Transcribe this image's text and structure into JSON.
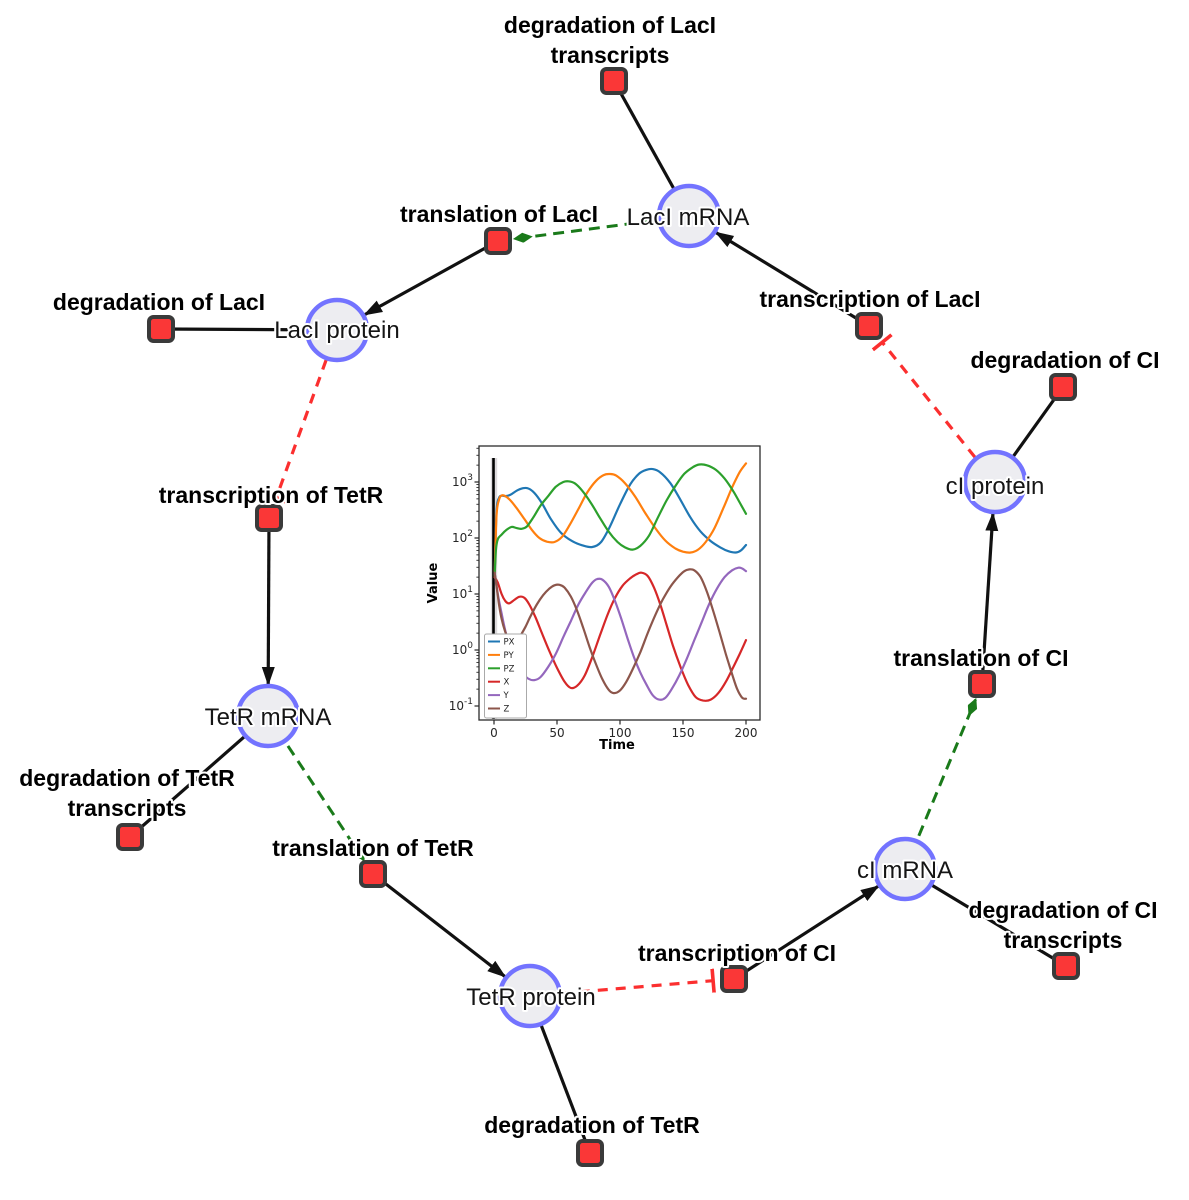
{
  "diagram": {
    "species": {
      "laci_mrna": {
        "label": "LacI mRNA"
      },
      "laci_protein": {
        "label": "LacI protein"
      },
      "tetr_mrna": {
        "label": "TetR mRNA"
      },
      "tetr_protein": {
        "label": "TetR protein"
      },
      "ci_mrna": {
        "label": "cI mRNA"
      },
      "ci_protein": {
        "label": "cI protein"
      }
    },
    "reactions": {
      "deg_laci_tx": {
        "lines": [
          "degradation of LacI",
          "transcripts"
        ]
      },
      "transl_laci": {
        "label": "translation of LacI"
      },
      "deg_laci": {
        "label": "degradation of LacI"
      },
      "txn_tetr": {
        "label": "transcription of TetR"
      },
      "deg_tetr_tx": {
        "lines": [
          "degradation of TetR",
          "transcripts"
        ]
      },
      "transl_tetr": {
        "label": "translation of TetR"
      },
      "deg_tetr": {
        "label": "degradation of TetR"
      },
      "txn_ci": {
        "label": "transcription of CI"
      },
      "deg_ci_tx": {
        "lines": [
          "degradation of CI",
          "transcripts"
        ]
      },
      "transl_ci": {
        "label": "translation of CI"
      },
      "deg_ci": {
        "label": "degradation of CI"
      },
      "txn_laci": {
        "label": "transcription of LacI"
      }
    },
    "edges": [
      {
        "source": "txn_laci",
        "target": "laci_mrna",
        "type": "production"
      },
      {
        "source": "txn_tetr",
        "target": "tetr_mrna",
        "type": "production"
      },
      {
        "source": "txn_ci",
        "target": "ci_mrna",
        "type": "production"
      },
      {
        "source": "transl_laci",
        "target": "laci_protein",
        "type": "production"
      },
      {
        "source": "transl_tetr",
        "target": "tetr_protein",
        "type": "production"
      },
      {
        "source": "transl_ci",
        "target": "ci_protein",
        "type": "production"
      },
      {
        "source": "laci_mrna",
        "target": "deg_laci_tx",
        "type": "degradation"
      },
      {
        "source": "laci_protein",
        "target": "deg_laci",
        "type": "degradation"
      },
      {
        "source": "tetr_mrna",
        "target": "deg_tetr_tx",
        "type": "degradation"
      },
      {
        "source": "tetr_protein",
        "target": "deg_tetr",
        "type": "degradation"
      },
      {
        "source": "ci_mrna",
        "target": "deg_ci_tx",
        "type": "degradation"
      },
      {
        "source": "ci_protein",
        "target": "deg_ci",
        "type": "degradation"
      },
      {
        "source": "laci_mrna",
        "target": "transl_laci",
        "type": "modifier"
      },
      {
        "source": "tetr_mrna",
        "target": "transl_tetr",
        "type": "modifier"
      },
      {
        "source": "ci_mrna",
        "target": "transl_ci",
        "type": "modifier"
      },
      {
        "source": "laci_protein",
        "target": "txn_tetr",
        "type": "inhibition"
      },
      {
        "source": "tetr_protein",
        "target": "txn_ci",
        "type": "inhibition"
      },
      {
        "source": "ci_protein",
        "target": "txn_laci",
        "type": "inhibition"
      }
    ],
    "colors": {
      "species_fill": "#ededf1",
      "species_stroke": "#7373ff",
      "reaction_fill": "#fa3737",
      "reaction_stroke": "#3a3a3a",
      "edge": "#111111",
      "activation": "#1a7a1a",
      "inhibition": "#fb2f2f"
    }
  },
  "chart_data": {
    "type": "line",
    "xlabel": "Time",
    "ylabel": "Value",
    "x_ticks": [
      0,
      50,
      100,
      150,
      200
    ],
    "xlim": [
      -12,
      212
    ],
    "y_scale": "log",
    "y_tick_exponents": [
      -1,
      0,
      1,
      2,
      3
    ],
    "ylim": [
      0.056,
      4500
    ],
    "legend_position": "lower left",
    "event_line_x": 0,
    "series": [
      {
        "name": "PX",
        "color": "#1f77b4",
        "points": [
          [
            0.5,
            20
          ],
          [
            2,
            300
          ],
          [
            4,
            520
          ],
          [
            6,
            570
          ],
          [
            9,
            560
          ],
          [
            13,
            590
          ],
          [
            18,
            700
          ],
          [
            23,
            775
          ],
          [
            27,
            770
          ],
          [
            32,
            640
          ],
          [
            38,
            420
          ],
          [
            45,
            220
          ],
          [
            53,
            125
          ],
          [
            62,
            88
          ],
          [
            70,
            74
          ],
          [
            78,
            69
          ],
          [
            85,
            85
          ],
          [
            92,
            160
          ],
          [
            100,
            400
          ],
          [
            108,
            900
          ],
          [
            115,
            1400
          ],
          [
            121,
            1650
          ],
          [
            126,
            1700
          ],
          [
            132,
            1480
          ],
          [
            140,
            950
          ],
          [
            148,
            480
          ],
          [
            156,
            230
          ],
          [
            164,
            130
          ],
          [
            172,
            88
          ],
          [
            180,
            67
          ],
          [
            186,
            58
          ],
          [
            192,
            55
          ],
          [
            196,
            60
          ],
          [
            200,
            75
          ]
        ]
      },
      {
        "name": "PY",
        "color": "#ff7f0e",
        "points": [
          [
            0.5,
            20
          ],
          [
            2,
            250
          ],
          [
            4,
            480
          ],
          [
            6,
            575
          ],
          [
            9,
            560
          ],
          [
            13,
            470
          ],
          [
            18,
            340
          ],
          [
            24,
            220
          ],
          [
            30,
            140
          ],
          [
            36,
            100
          ],
          [
            42,
            86
          ],
          [
            48,
            85
          ],
          [
            54,
            105
          ],
          [
            60,
            170
          ],
          [
            67,
            330
          ],
          [
            74,
            650
          ],
          [
            81,
            1050
          ],
          [
            87,
            1330
          ],
          [
            92,
            1390
          ],
          [
            97,
            1300
          ],
          [
            104,
            950
          ],
          [
            112,
            550
          ],
          [
            120,
            280
          ],
          [
            128,
            150
          ],
          [
            136,
            90
          ],
          [
            144,
            65
          ],
          [
            150,
            57
          ],
          [
            156,
            55
          ],
          [
            162,
            62
          ],
          [
            168,
            85
          ],
          [
            175,
            150
          ],
          [
            182,
            340
          ],
          [
            189,
            800
          ],
          [
            195,
            1500
          ],
          [
            200,
            2150
          ]
        ]
      },
      {
        "name": "PZ",
        "color": "#2ca02c",
        "points": [
          [
            0.5,
            20
          ],
          [
            1.5,
            60
          ],
          [
            3,
            95
          ],
          [
            6,
            115
          ],
          [
            10,
            140
          ],
          [
            14,
            158
          ],
          [
            18,
            150
          ],
          [
            22,
            146
          ],
          [
            26,
            160
          ],
          [
            31,
            230
          ],
          [
            37,
            380
          ],
          [
            43,
            560
          ],
          [
            49,
            820
          ],
          [
            55,
            1000
          ],
          [
            59,
            1030
          ],
          [
            64,
            950
          ],
          [
            70,
            700
          ],
          [
            77,
            420
          ],
          [
            84,
            230
          ],
          [
            91,
            130
          ],
          [
            98,
            85
          ],
          [
            104,
            68
          ],
          [
            110,
            62
          ],
          [
            116,
            72
          ],
          [
            123,
            110
          ],
          [
            130,
            230
          ],
          [
            137,
            470
          ],
          [
            144,
            850
          ],
          [
            151,
            1400
          ],
          [
            158,
            1850
          ],
          [
            163,
            2050
          ],
          [
            169,
            1990
          ],
          [
            176,
            1650
          ],
          [
            183,
            1150
          ],
          [
            190,
            680
          ],
          [
            195,
            430
          ],
          [
            200,
            270
          ]
        ]
      },
      {
        "name": "X",
        "color": "#d62728",
        "points": [
          [
            0.5,
            20
          ],
          [
            3,
            16
          ],
          [
            6,
            10
          ],
          [
            9,
            7.5
          ],
          [
            12,
            6.8
          ],
          [
            16,
            7.8
          ],
          [
            20,
            8.9
          ],
          [
            24,
            8.6
          ],
          [
            28,
            6.5
          ],
          [
            33,
            3.8
          ],
          [
            38,
            2.0
          ],
          [
            44,
            0.95
          ],
          [
            50,
            0.48
          ],
          [
            56,
            0.27
          ],
          [
            61,
            0.21
          ],
          [
            66,
            0.23
          ],
          [
            72,
            0.35
          ],
          [
            78,
            0.75
          ],
          [
            84,
            1.8
          ],
          [
            90,
            4.2
          ],
          [
            96,
            8.5
          ],
          [
            102,
            14
          ],
          [
            108,
            19
          ],
          [
            113,
            22.5
          ],
          [
            117,
            24
          ],
          [
            122,
            21
          ],
          [
            127,
            13
          ],
          [
            132,
            6.5
          ],
          [
            137,
            2.8
          ],
          [
            142,
            1.2
          ],
          [
            148,
            0.5
          ],
          [
            154,
            0.24
          ],
          [
            160,
            0.145
          ],
          [
            166,
            0.125
          ],
          [
            172,
            0.13
          ],
          [
            178,
            0.17
          ],
          [
            184,
            0.27
          ],
          [
            190,
            0.5
          ],
          [
            195,
            0.85
          ],
          [
            200,
            1.5
          ]
        ]
      },
      {
        "name": "Y",
        "color": "#9467bd",
        "points": [
          [
            0.5,
            24
          ],
          [
            3,
            10
          ],
          [
            6,
            4.5
          ],
          [
            9,
            2.2
          ],
          [
            13,
            1.05
          ],
          [
            17,
            0.6
          ],
          [
            22,
            0.4
          ],
          [
            27,
            0.31
          ],
          [
            32,
            0.29
          ],
          [
            37,
            0.33
          ],
          [
            43,
            0.5
          ],
          [
            49,
            0.85
          ],
          [
            55,
            1.7
          ],
          [
            61,
            3.3
          ],
          [
            67,
            6.5
          ],
          [
            73,
            11
          ],
          [
            78,
            16
          ],
          [
            82,
            18.5
          ],
          [
            86,
            18
          ],
          [
            91,
            13.5
          ],
          [
            96,
            7.5
          ],
          [
            101,
            3.6
          ],
          [
            106,
            1.6
          ],
          [
            111,
            0.75
          ],
          [
            116,
            0.4
          ],
          [
            121,
            0.24
          ],
          [
            126,
            0.155
          ],
          [
            131,
            0.13
          ],
          [
            136,
            0.14
          ],
          [
            141,
            0.2
          ],
          [
            147,
            0.35
          ],
          [
            153,
            0.7
          ],
          [
            159,
            1.5
          ],
          [
            165,
            3.2
          ],
          [
            171,
            6.8
          ],
          [
            177,
            12.5
          ],
          [
            183,
            20
          ],
          [
            189,
            26.5
          ],
          [
            194,
            29.5
          ],
          [
            197,
            28.5
          ],
          [
            200,
            25.5
          ]
        ]
      },
      {
        "name": "Z",
        "color": "#8c564b",
        "points": [
          [
            0.5,
            24
          ],
          [
            2,
            14
          ],
          [
            4,
            6.5
          ],
          [
            6,
            3.6
          ],
          [
            9,
            2.1
          ],
          [
            12,
            1.55
          ],
          [
            15,
            1.35
          ],
          [
            18,
            1.45
          ],
          [
            21,
            1.8
          ],
          [
            25,
            2.6
          ],
          [
            29,
            4.0
          ],
          [
            34,
            6.5
          ],
          [
            39,
            9.5
          ],
          [
            44,
            12.5
          ],
          [
            48,
            14.3
          ],
          [
            52,
            14.6
          ],
          [
            56,
            13
          ],
          [
            61,
            9
          ],
          [
            66,
            5
          ],
          [
            71,
            2.4
          ],
          [
            76,
            1.1
          ],
          [
            81,
            0.55
          ],
          [
            86,
            0.3
          ],
          [
            91,
            0.195
          ],
          [
            95,
            0.17
          ],
          [
            100,
            0.19
          ],
          [
            105,
            0.27
          ],
          [
            110,
            0.45
          ],
          [
            116,
            0.9
          ],
          [
            122,
            2.0
          ],
          [
            128,
            4.2
          ],
          [
            134,
            8
          ],
          [
            140,
            13.5
          ],
          [
            146,
            20
          ],
          [
            151,
            25.5
          ],
          [
            155,
            27.5
          ],
          [
            159,
            26.5
          ],
          [
            164,
            20
          ],
          [
            169,
            11
          ],
          [
            174,
            5
          ],
          [
            179,
            2.1
          ],
          [
            184,
            0.85
          ],
          [
            189,
            0.37
          ],
          [
            193,
            0.2
          ],
          [
            197,
            0.14
          ],
          [
            200,
            0.135
          ]
        ]
      }
    ]
  }
}
